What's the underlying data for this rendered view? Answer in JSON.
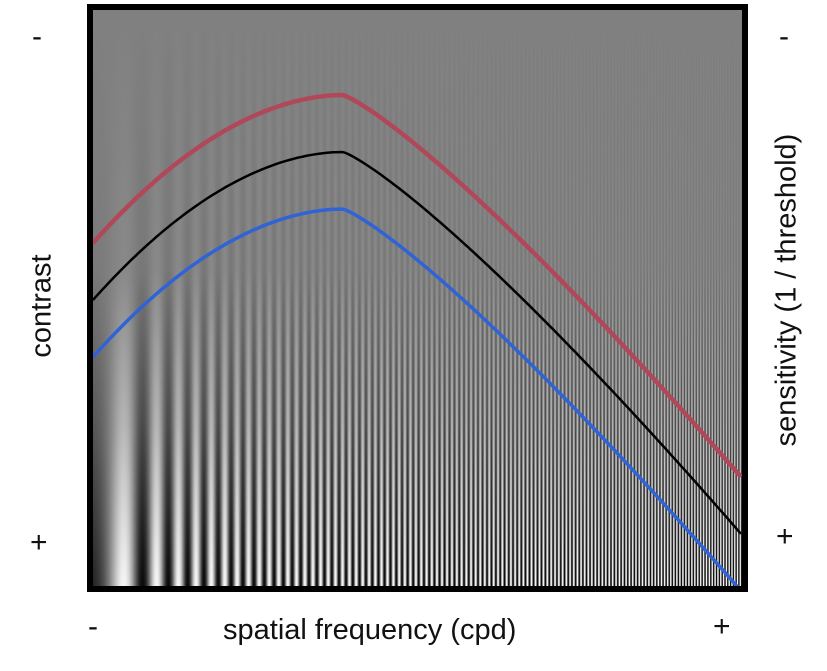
{
  "diagram": {
    "x_axis": {
      "label": "spatial frequency (cpd)",
      "low_sign": "-",
      "high_sign": "+"
    },
    "left_axis": {
      "label": "contrast",
      "top_sign": "-",
      "bottom_sign": "+"
    },
    "right_axis": {
      "label": "sensitivity (1 / threshold)",
      "top_sign": "-",
      "bottom_sign": "+"
    },
    "curves": [
      {
        "role": "upper",
        "color": "#b0485a"
      },
      {
        "role": "middle",
        "color": "#000000"
      },
      {
        "role": "lower",
        "color": "#2f63d6"
      }
    ],
    "background": "Campbell-Robson contrast sensitivity grating"
  }
}
